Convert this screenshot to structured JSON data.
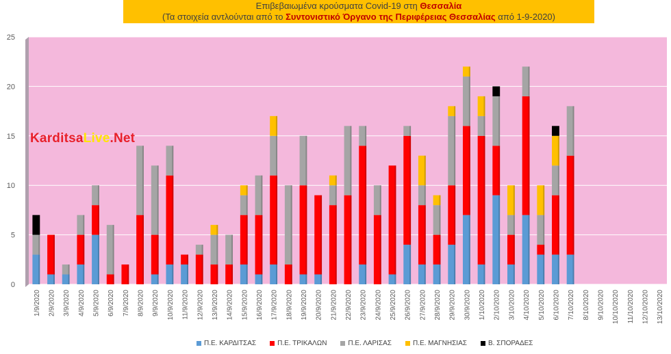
{
  "title": {
    "line1_prefix": "Επιβεβαιωμένα κρούσματα Covid-19 στη ",
    "line1_emph": "Θεσσαλία",
    "line2_prefix": "(Τα στοιχεία αντλούνται από το ",
    "line2_emph": "Συντονιστικό Όργανο της Περιφέρειας Θεσσαλίας",
    "line2_suffix": " από 1-9-2020)"
  },
  "logo": {
    "part1": "Karditsa",
    "part2": "Live",
    "part3": ".Net"
  },
  "colors": {
    "plot_bg": "#f4b8dc",
    "plot_side": "#b0a0ae",
    "grid": "#ffffff",
    "series": [
      "#5b9bd5",
      "#ff0000",
      "#a5a5a5",
      "#ffc000",
      "#000000"
    ]
  },
  "chart_data": {
    "type": "bar",
    "stacked": true,
    "ylim": [
      0,
      25
    ],
    "yticks": [
      0,
      5,
      10,
      15,
      20,
      25
    ],
    "grid": true,
    "legend_position": "bottom",
    "categories": [
      "1/9/2020",
      "2/9/2020",
      "3/9/2020",
      "4/9/2020",
      "5/9/2020",
      "6/9/2020",
      "7/9/2020",
      "8/9/2020",
      "9/9/2020",
      "10/9/2020",
      "11/9/2020",
      "12/9/2020",
      "13/9/2020",
      "14/9/2020",
      "15/9/2020",
      "16/9/2020",
      "17/9/2020",
      "18/9/2020",
      "19/9/2020",
      "20/9/2020",
      "21/9/2020",
      "22/9/2020",
      "23/9/2020",
      "24/9/2020",
      "25/9/2020",
      "26/9/2020",
      "27/9/2020",
      "28/9/2020",
      "29/9/2020",
      "30/9/2020",
      "1/10/2020",
      "2/10/2020",
      "3/10/2020",
      "4/10/2020",
      "5/10/2020",
      "6/10/2020",
      "7/10/2020",
      "8/10/2020",
      "9/10/2020",
      "10/10/2020",
      "11/10/2020",
      "12/10/2020",
      "13/10/2020"
    ],
    "series": [
      {
        "name": "Π.Ε. ΚΑΡΔΙΤΣΑΣ",
        "values": [
          3,
          1,
          1,
          2,
          5,
          0,
          0,
          0,
          1,
          2,
          2,
          0,
          0,
          0,
          2,
          1,
          2,
          0,
          1,
          1,
          0,
          0,
          2,
          0,
          1,
          4,
          2,
          2,
          4,
          7,
          2,
          9,
          2,
          7,
          3,
          3,
          3,
          0,
          0,
          0,
          0,
          0,
          0
        ]
      },
      {
        "name": "Π.Ε. ΤΡΙΚΑΛΩΝ",
        "values": [
          0,
          4,
          0,
          3,
          3,
          1,
          2,
          7,
          4,
          9,
          1,
          3,
          2,
          2,
          5,
          6,
          9,
          2,
          9,
          8,
          8,
          9,
          12,
          7,
          11,
          11,
          6,
          3,
          6,
          9,
          13,
          5,
          3,
          12,
          1,
          6,
          10,
          0,
          0,
          0,
          0,
          0,
          0
        ]
      },
      {
        "name": "Π.Ε. ΛΑΡΙΣΑΣ",
        "values": [
          2,
          0,
          1,
          2,
          2,
          5,
          0,
          7,
          7,
          3,
          0,
          1,
          3,
          3,
          2,
          4,
          4,
          8,
          5,
          0,
          2,
          7,
          2,
          3,
          0,
          1,
          2,
          3,
          7,
          5,
          2,
          5,
          2,
          3,
          3,
          3,
          5,
          0,
          0,
          0,
          0,
          0,
          0
        ]
      },
      {
        "name": "Π.Ε. ΜΑΓΝΗΣΙΑΣ",
        "values": [
          0,
          0,
          0,
          0,
          0,
          0,
          0,
          0,
          0,
          0,
          0,
          0,
          1,
          0,
          1,
          0,
          2,
          0,
          0,
          0,
          1,
          0,
          0,
          0,
          0,
          0,
          3,
          1,
          1,
          1,
          2,
          0,
          3,
          0,
          3,
          3,
          0,
          0,
          0,
          0,
          0,
          0,
          0
        ]
      },
      {
        "name": "Β. ΣΠΟΡΑΔΕΣ",
        "values": [
          2,
          0,
          0,
          0,
          0,
          0,
          0,
          0,
          0,
          0,
          0,
          0,
          0,
          0,
          0,
          0,
          0,
          0,
          0,
          0,
          0,
          0,
          0,
          0,
          0,
          0,
          0,
          0,
          0,
          0,
          0,
          1,
          0,
          0,
          0,
          1,
          0,
          0,
          0,
          0,
          0,
          0,
          0
        ]
      }
    ]
  }
}
